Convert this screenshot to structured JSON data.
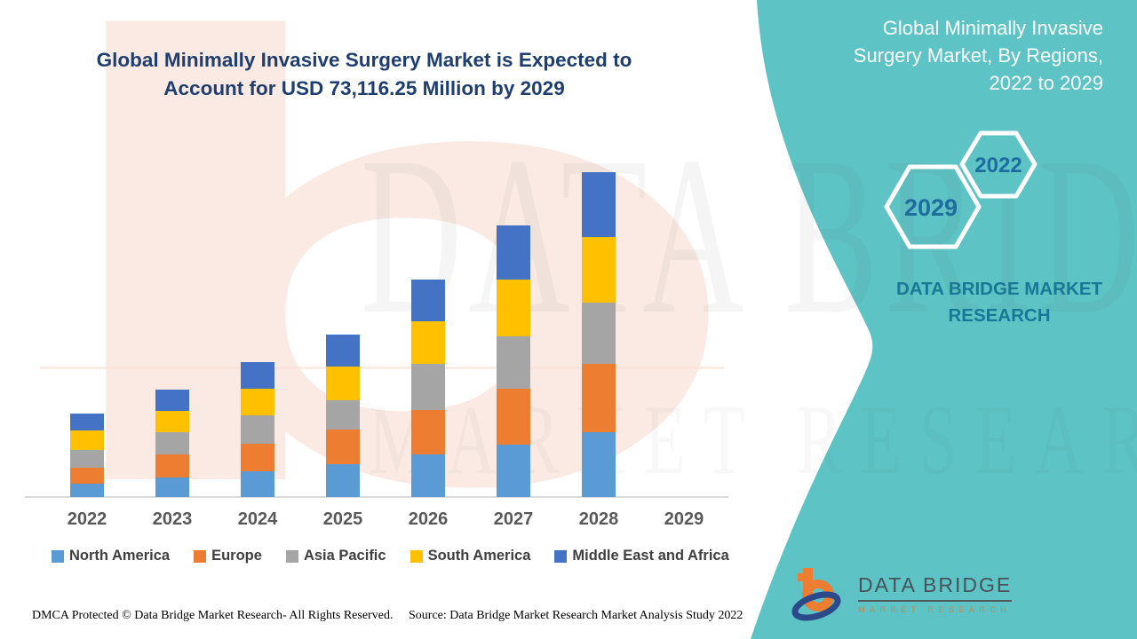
{
  "page": {
    "accent_teal": "#5EC3C5",
    "title_color": "#1F3E70",
    "axis_line_color": "#D9D9D9",
    "axis_label_color": "#595959"
  },
  "title": {
    "text": "Global Minimally Invasive Surgery Market is Expected to\nAccount for USD 73,116.25 Million by 2029"
  },
  "side_panel": {
    "heading": "Global Minimally Invasive\nSurgery Market, By Regions,\n2022 to 2029",
    "hexagon_large_label": "2029",
    "hexagon_small_label": "2022",
    "brand_text": "DATA BRIDGE MARKET\nRESEARCH"
  },
  "watermarks": {
    "row1": "DATA BRIDGE",
    "row2": "MARKET RESEARCH",
    "letter": "b"
  },
  "logo": {
    "name": "DATA BRIDGE",
    "subtitle": "MARKET RESEARCH"
  },
  "footer": {
    "left": "DMCA Protected © Data Bridge Market Research- All Rights Reserved.",
    "right": "Source: Data Bridge Market Research Market Analysis Study 2022"
  },
  "chart_data": {
    "type": "bar",
    "stacked": true,
    "title": "Global Minimally Invasive Surgery Market, By Regions, 2022 to 2029",
    "categories": [
      "2022",
      "2023",
      "2024",
      "2025",
      "2026",
      "2027",
      "2028",
      "2029"
    ],
    "series": [
      {
        "name": "North America",
        "color": "#5B9BD5",
        "values": [
          15,
          22,
          29,
          37,
          48,
          59,
          73,
          null
        ]
      },
      {
        "name": "Europe",
        "color": "#ED7D31",
        "values": [
          18,
          26,
          31,
          39,
          50,
          63,
          77,
          null
        ]
      },
      {
        "name": "Asia Pacific",
        "color": "#A5A5A5",
        "values": [
          20,
          25,
          32,
          33,
          52,
          59,
          69,
          null
        ]
      },
      {
        "name": "South America",
        "color": "#FFC000",
        "values": [
          22,
          24,
          30,
          38,
          48,
          64,
          74,
          null
        ]
      },
      {
        "name": "Middle East and Africa",
        "color": "#4472C4",
        "values": [
          19,
          24,
          30,
          36,
          47,
          61,
          73,
          null
        ]
      }
    ],
    "units": "relative height, pixels (chart shows no y-axis scale)",
    "stack_totals_relative": [
      94,
      121,
      152,
      183,
      245,
      306,
      366,
      null
    ],
    "headline_value_2029": "USD 73,116.25 Million",
    "xlabel": "",
    "ylabel": "",
    "grid": false,
    "legend_position": "bottom"
  }
}
